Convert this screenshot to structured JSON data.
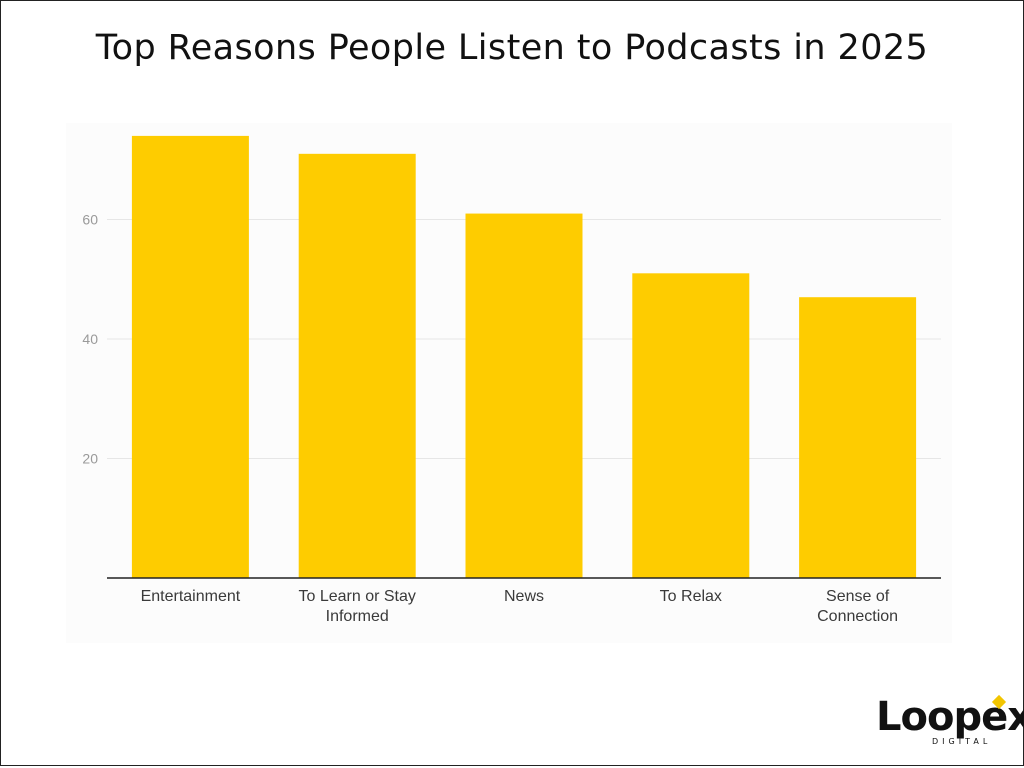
{
  "title": "Top Reasons People Listen to Podcasts in 2025",
  "brand": {
    "name": "Loopex",
    "tagline": "DIGITAL",
    "accent_color": "#f2c500"
  },
  "colors": {
    "bar": "#fecc00",
    "grid": "#e6e6e6",
    "axis": "#222222"
  },
  "chart_data": {
    "type": "bar",
    "title": "Top Reasons People Listen to Podcasts in 2025",
    "categories": [
      "Entertainment",
      "To Learn or Stay Informed",
      "News",
      "To Relax",
      "Sense of Connection"
    ],
    "category_lines": [
      [
        "Entertainment"
      ],
      [
        "To Learn or Stay",
        "Informed"
      ],
      [
        "News"
      ],
      [
        "To Relax"
      ],
      [
        "Sense of",
        "Connection"
      ]
    ],
    "values": [
      74,
      71,
      61,
      51,
      47
    ],
    "yticks": [
      20,
      40,
      60
    ],
    "ylim": [
      0,
      78
    ],
    "xlabel": "",
    "ylabel": "",
    "grid": true,
    "legend": "none"
  }
}
